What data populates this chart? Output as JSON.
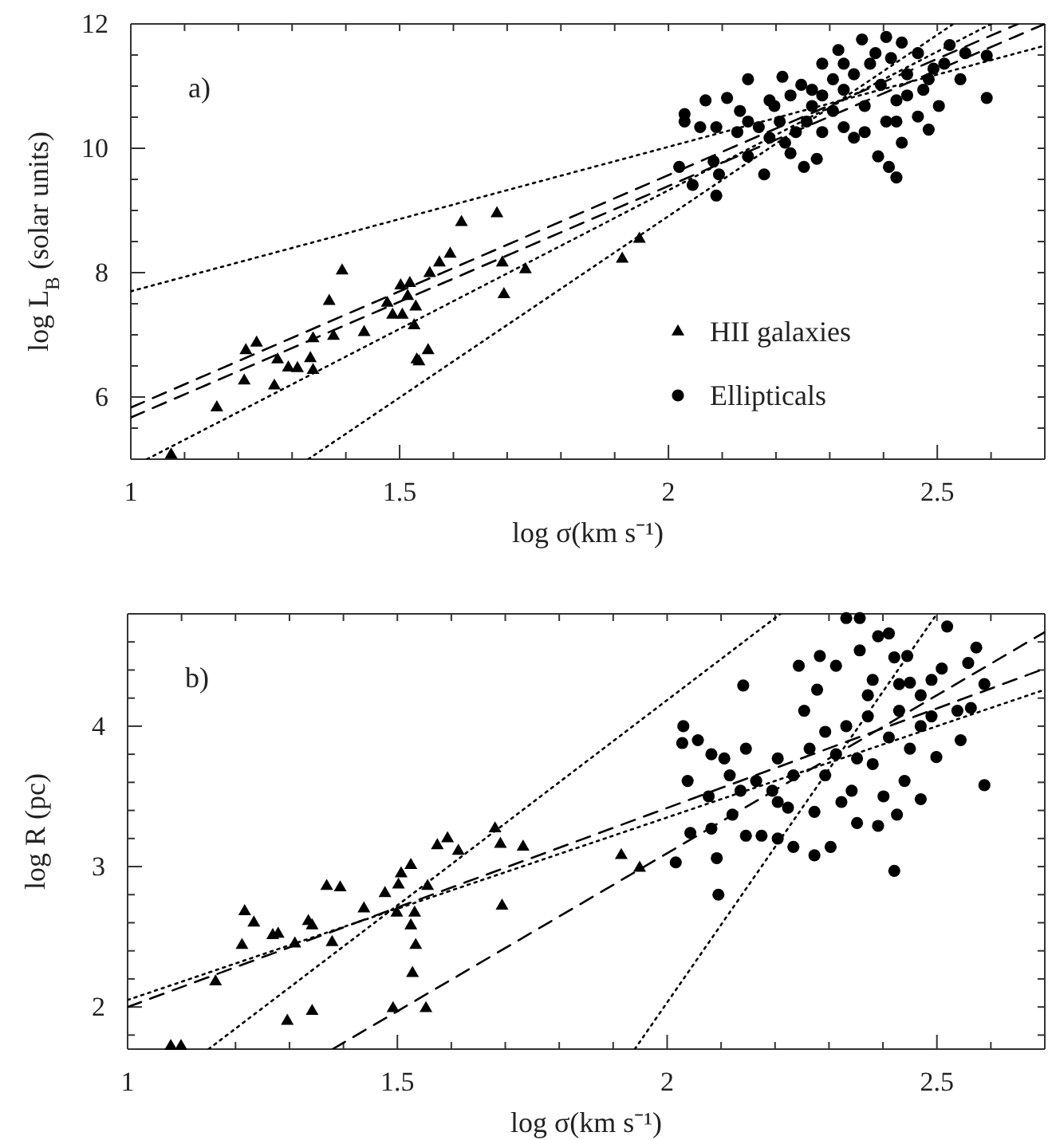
{
  "chart_data": [
    {
      "type": "scatter",
      "xlabel": "log σ(km s⁻¹)",
      "ylabel": "log L$_{B}$ (solar units)",
      "annotations": [
        "a)"
      ],
      "legend": "bottom right",
      "xlim": [
        1,
        2.7
      ],
      "xticks": [
        1,
        {
          "value": 1.1,
          "label": null
        },
        {
          "value": 1.2,
          "label": null
        },
        {
          "value": 1.3,
          "label": null
        },
        {
          "value": 1.4,
          "label": null
        },
        1.5,
        {
          "value": 1.6,
          "label": null
        },
        {
          "value": 1.7,
          "label": null
        },
        {
          "value": 1.8,
          "label": null
        },
        {
          "value": 1.9,
          "label": null
        },
        2,
        {
          "value": 2.1,
          "label": null
        },
        {
          "value": 2.2,
          "label": null
        },
        {
          "value": 2.3,
          "label": null
        },
        {
          "value": 2.4,
          "label": null
        },
        2.5,
        {
          "value": 2.6,
          "label": null
        }
      ],
      "ylim": [
        5,
        12
      ],
      "yticks": [
        {
          "value": 5.5,
          "label": null
        },
        6,
        {
          "value": 6.5,
          "label": null
        },
        8,
        {
          "value": 7,
          "label": null
        },
        {
          "value": 7.5,
          "label": null
        },
        {
          "value": 8.5,
          "label": null
        },
        {
          "value": 9,
          "label": null
        },
        {
          "value": 9.5,
          "label": null
        },
        10,
        {
          "value": 10.5,
          "label": null
        },
        {
          "value": 11,
          "label": null
        },
        {
          "value": 11.5,
          "label": null
        },
        12
      ],
      "series": [
        {
          "name": "HII galaxies",
          "marker": "triangle",
          "color": "#000000",
          "x": [
            1.075,
            1.16,
            1.214,
            1.234,
            1.211,
            1.267,
            1.273,
            1.293,
            1.31,
            1.334,
            1.339,
            1.339,
            1.369,
            1.377,
            1.393,
            1.434,
            1.477,
            1.487,
            1.502,
            1.505,
            1.515,
            1.519,
            1.527,
            1.53,
            1.532,
            1.536,
            1.553,
            1.556,
            1.574,
            1.594,
            1.615,
            1.681,
            1.691,
            1.694,
            1.734,
            1.914,
            1.946
          ],
          "values": [
            5.07,
            5.83,
            6.75,
            6.87,
            6.26,
            6.18,
            6.6,
            6.47,
            6.46,
            6.62,
            6.43,
            6.94,
            7.54,
            6.98,
            8.03,
            7.04,
            7.51,
            7.32,
            7.79,
            7.32,
            7.62,
            7.83,
            7.15,
            7.45,
            6.6,
            6.57,
            6.75,
            7.99,
            8.16,
            8.3,
            8.81,
            8.95,
            8.16,
            7.65,
            8.05,
            8.22,
            8.54
          ]
        },
        {
          "name": "Ellipticals",
          "marker": "circle",
          "color": "#000000",
          "x": [
            2.03,
            2.03,
            2.02,
            2.045,
            2.089,
            2.094,
            2.084,
            2.069,
            2.109,
            2.133,
            2.148,
            2.148,
            2.178,
            2.168,
            2.197,
            2.212,
            2.227,
            2.252,
            2.276,
            2.247,
            2.286,
            2.316,
            2.36,
            2.39,
            2.41,
            2.424,
            2.434,
            2.484,
            2.523,
            2.552,
            2.592,
            2.592,
            2.543,
            2.207,
            2.188,
            2.267,
            2.286,
            2.306,
            2.326,
            2.345,
            2.365,
            2.375,
            2.395,
            2.414,
            2.424,
            2.444,
            2.464,
            2.474,
            2.493,
            2.503,
            2.326,
            2.345,
            2.365,
            2.405,
            2.148,
            2.128,
            2.089,
            2.059,
            2.237,
            2.217,
            2.257,
            2.286,
            2.424,
            2.464,
            2.385,
            2.326,
            2.306,
            2.267,
            2.227,
            2.188,
            2.444,
            2.484,
            2.513,
            2.434,
            2.405
          ],
          "values": [
            10.55,
            10.43,
            9.7,
            9.41,
            9.24,
            9.58,
            9.79,
            10.77,
            10.81,
            10.6,
            11.11,
            9.87,
            9.58,
            10.34,
            10.68,
            11.15,
            9.92,
            9.7,
            9.83,
            11.02,
            11.36,
            11.58,
            11.75,
            9.87,
            9.7,
            9.53,
            10.09,
            10.3,
            11.66,
            11.53,
            11.49,
            10.81,
            11.11,
            10.43,
            10.17,
            10.68,
            10.85,
            10.6,
            10.94,
            11.19,
            10.68,
            11.36,
            11.02,
            11.45,
            10.77,
            11.19,
            11.53,
            10.94,
            11.28,
            10.68,
            10.34,
            10.17,
            10.26,
            10.43,
            10.43,
            10.26,
            10.34,
            10.34,
            10.26,
            10.09,
            10.43,
            10.26,
            10.43,
            10.51,
            11.53,
            11.36,
            11.11,
            10.94,
            10.85,
            10.77,
            10.85,
            11.11,
            11.36,
            11.7,
            11.79
          ]
        },
        {
          "type": "line",
          "line_style": "dotted",
          "color": "#000000",
          "x": [
            1,
            2.7
          ],
          "values": [
            7.7,
            11.65
          ]
        },
        {
          "type": "line",
          "line_style": "dotted",
          "color": "#000000",
          "x": [
            1.33,
            2.53
          ],
          "values": [
            5,
            12
          ]
        },
        {
          "type": "line",
          "line_style": "dotted",
          "color": "#000000",
          "x": [
            1.03,
            2.6
          ],
          "values": [
            5,
            12
          ]
        },
        {
          "type": "line",
          "line_style": "dashed",
          "color": "#000000",
          "x": [
            1,
            2.65
          ],
          "values": [
            5.83,
            12
          ]
        },
        {
          "type": "line",
          "line_style": "dashed",
          "color": "#000000",
          "x": [
            1,
            2.7
          ],
          "values": [
            5.67,
            12
          ]
        }
      ]
    },
    {
      "type": "scatter",
      "xlabel": "log σ(km s⁻¹)",
      "ylabel": "log R (pc)",
      "annotations": [
        "b)"
      ],
      "xlim": [
        1,
        2.7
      ],
      "xticks": [
        1,
        {
          "value": 1.1,
          "label": null
        },
        {
          "value": 1.2,
          "label": null
        },
        {
          "value": 1.3,
          "label": null
        },
        {
          "value": 1.4,
          "label": null
        },
        1.5,
        {
          "value": 1.6,
          "label": null
        },
        {
          "value": 1.7,
          "label": null
        },
        {
          "value": 1.8,
          "label": null
        },
        {
          "value": 1.9,
          "label": null
        },
        2,
        {
          "value": 2.1,
          "label": null
        },
        {
          "value": 2.2,
          "label": null
        },
        {
          "value": 2.3,
          "label": null
        },
        {
          "value": 2.4,
          "label": null
        },
        2.5,
        {
          "value": 2.6,
          "label": null
        }
      ],
      "ylim": [
        1.7,
        4.8
      ],
      "yticks": [
        {
          "value": 1.8,
          "label": null
        },
        2,
        {
          "value": 2.2,
          "label": null
        },
        {
          "value": 2.4,
          "label": null
        },
        {
          "value": 2.6,
          "label": null
        },
        {
          "value": 2.8,
          "label": null
        },
        3,
        {
          "value": 3.2,
          "label": null
        },
        {
          "value": 3.4,
          "label": null
        },
        {
          "value": 3.6,
          "label": null
        },
        {
          "value": 3.8,
          "label": null
        },
        4,
        {
          "value": 4.2,
          "label": null
        },
        {
          "value": 4.4,
          "label": null
        },
        {
          "value": 4.6,
          "label": null
        }
      ],
      "series": [
        {
          "marker": "triangle",
          "color": "#000000",
          "x": [
            1.08,
            1.099,
            1.163,
            1.212,
            1.217,
            1.234,
            1.269,
            1.279,
            1.296,
            1.31,
            1.335,
            1.342,
            1.342,
            1.369,
            1.379,
            1.394,
            1.438,
            1.477,
            1.492,
            1.502,
            1.507,
            1.499,
            1.525,
            1.525,
            1.532,
            1.534,
            1.528,
            1.553,
            1.556,
            1.574,
            1.593,
            1.613,
            1.681,
            1.691,
            1.694,
            1.733,
            1.915,
            1.949
          ],
          "values": [
            1.72,
            1.72,
            2.18,
            2.44,
            2.68,
            2.6,
            2.51,
            2.52,
            1.9,
            2.45,
            2.61,
            2.58,
            1.97,
            2.86,
            2.46,
            2.85,
            2.7,
            2.81,
            1.99,
            2.87,
            2.95,
            2.67,
            3.01,
            2.58,
            2.67,
            2.44,
            2.24,
            1.99,
            2.86,
            3.15,
            3.2,
            3.11,
            3.27,
            3.16,
            2.72,
            3.14,
            3.08,
            2.99
          ]
        },
        {
          "marker": "circle",
          "color": "#000000",
          "x": [
            2.03,
            2.028,
            2.057,
            2.038,
            2.043,
            2.082,
            2.016,
            2.092,
            2.095,
            2.141,
            2.082,
            2.106,
            2.077,
            2.121,
            2.146,
            2.175,
            2.205,
            2.234,
            2.273,
            2.303,
            2.146,
            2.165,
            2.195,
            2.205,
            2.224,
            2.244,
            2.283,
            2.313,
            2.278,
            2.254,
            2.264,
            2.293,
            2.293,
            2.332,
            2.357,
            2.391,
            2.411,
            2.357,
            2.381,
            2.421,
            2.445,
            2.45,
            2.49,
            2.519,
            2.509,
            2.573,
            2.588,
            2.558,
            2.538,
            2.563,
            2.544,
            2.588,
            2.421,
            2.47,
            2.44,
            2.499,
            2.352,
            2.391,
            2.426,
            2.342,
            2.381,
            2.332,
            2.372,
            2.43,
            2.47,
            2.411,
            2.45,
            2.313,
            2.352,
            2.234,
            2.205,
            2.136,
            2.116,
            2.273,
            2.323,
            2.401,
            2.372,
            2.49,
            2.47,
            2.43
          ],
          "values": [
            4.0,
            3.88,
            3.9,
            3.61,
            3.24,
            3.27,
            3.03,
            3.06,
            2.8,
            4.29,
            3.8,
            3.77,
            3.5,
            3.37,
            3.22,
            3.22,
            3.2,
            3.14,
            3.08,
            3.14,
            3.84,
            3.61,
            3.54,
            3.77,
            3.42,
            4.43,
            4.5,
            4.43,
            4.26,
            4.11,
            3.84,
            3.96,
            3.65,
            4.77,
            4.77,
            4.64,
            4.66,
            4.54,
            4.33,
            4.49,
            4.5,
            4.31,
            4.33,
            4.71,
            4.41,
            4.56,
            4.3,
            4.45,
            4.11,
            4.13,
            3.9,
            3.58,
            2.97,
            3.48,
            3.61,
            3.78,
            3.31,
            3.29,
            3.37,
            3.54,
            3.73,
            4.0,
            4.07,
            4.11,
            4.0,
            3.92,
            3.84,
            3.8,
            3.77,
            3.65,
            3.46,
            3.54,
            3.65,
            3.39,
            3.46,
            3.5,
            4.22,
            4.07,
            4.22,
            4.3
          ]
        },
        {
          "type": "line",
          "line_style": "dotted",
          "color": "#000000",
          "x": [
            1,
            2.7
          ],
          "values": [
            2.05,
            4.26
          ]
        },
        {
          "type": "line",
          "line_style": "dashed",
          "color": "#000000",
          "x": [
            1,
            2.7
          ],
          "values": [
            2.0,
            4.41
          ]
        },
        {
          "type": "line",
          "line_style": "dashed",
          "color": "#000000",
          "x": [
            1.38,
            2.7
          ],
          "values": [
            1.7,
            4.67
          ]
        },
        {
          "type": "line",
          "line_style": "dotted",
          "color": "#000000",
          "x": [
            1.15,
            2.21
          ],
          "values": [
            1.7,
            4.8
          ]
        },
        {
          "type": "line",
          "line_style": "dotted",
          "color": "#000000",
          "x": [
            1.94,
            2.5
          ],
          "values": [
            1.7,
            4.8
          ]
        }
      ]
    }
  ]
}
